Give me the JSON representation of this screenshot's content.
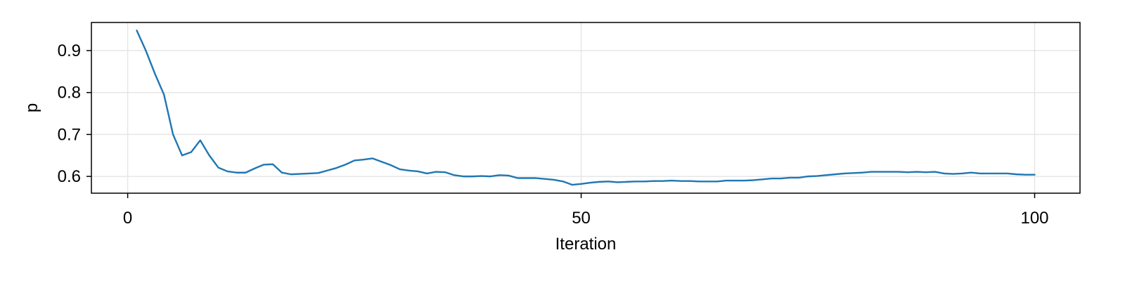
{
  "chart_data": {
    "type": "line",
    "title": "",
    "xlabel": "Iteration",
    "ylabel": "p",
    "xlim": [
      -4,
      105
    ],
    "ylim": [
      0.56,
      0.967
    ],
    "x_ticks": [
      0,
      50,
      100
    ],
    "x_tick_labels": [
      "0",
      "50",
      "100"
    ],
    "y_ticks": [
      0.6,
      0.7,
      0.8,
      0.9
    ],
    "y_tick_labels": [
      "0.6",
      "0.7",
      "0.8",
      "0.9"
    ],
    "grid": true,
    "legend": "none",
    "series": [
      {
        "color": "#1f77b4",
        "x": [
          1,
          2,
          3,
          4,
          5,
          6,
          7,
          8,
          9,
          10,
          11,
          12,
          13,
          14,
          15,
          16,
          17,
          18,
          19,
          20,
          21,
          22,
          23,
          24,
          25,
          26,
          27,
          28,
          29,
          30,
          31,
          32,
          33,
          34,
          35,
          36,
          37,
          38,
          39,
          40,
          41,
          42,
          43,
          44,
          45,
          46,
          47,
          48,
          49,
          50,
          51,
          52,
          53,
          54,
          55,
          56,
          57,
          58,
          59,
          60,
          61,
          62,
          63,
          64,
          65,
          66,
          67,
          68,
          69,
          70,
          71,
          72,
          73,
          74,
          75,
          76,
          77,
          78,
          79,
          80,
          81,
          82,
          83,
          84,
          85,
          86,
          87,
          88,
          89,
          90,
          91,
          92,
          93,
          94,
          95,
          96,
          97,
          98,
          99,
          100
        ],
        "values": [
          0.948,
          0.9,
          0.845,
          0.795,
          0.7,
          0.65,
          0.658,
          0.686,
          0.65,
          0.621,
          0.612,
          0.609,
          0.609,
          0.619,
          0.628,
          0.629,
          0.609,
          0.605,
          0.606,
          0.607,
          0.608,
          0.614,
          0.62,
          0.628,
          0.638,
          0.64,
          0.643,
          0.635,
          0.627,
          0.617,
          0.614,
          0.612,
          0.607,
          0.611,
          0.61,
          0.603,
          0.6,
          0.6,
          0.601,
          0.6,
          0.603,
          0.602,
          0.596,
          0.596,
          0.596,
          0.594,
          0.592,
          0.588,
          0.58,
          0.582,
          0.585,
          0.587,
          0.588,
          0.586,
          0.587,
          0.588,
          0.588,
          0.589,
          0.589,
          0.59,
          0.589,
          0.589,
          0.588,
          0.588,
          0.588,
          0.59,
          0.59,
          0.59,
          0.591,
          0.593,
          0.595,
          0.595,
          0.597,
          0.597,
          0.6,
          0.601,
          0.603,
          0.605,
          0.607,
          0.608,
          0.609,
          0.611,
          0.611,
          0.611,
          0.611,
          0.61,
          0.611,
          0.61,
          0.611,
          0.607,
          0.606,
          0.607,
          0.609,
          0.607,
          0.607,
          0.607,
          0.607,
          0.605,
          0.604,
          0.604
        ]
      }
    ]
  }
}
